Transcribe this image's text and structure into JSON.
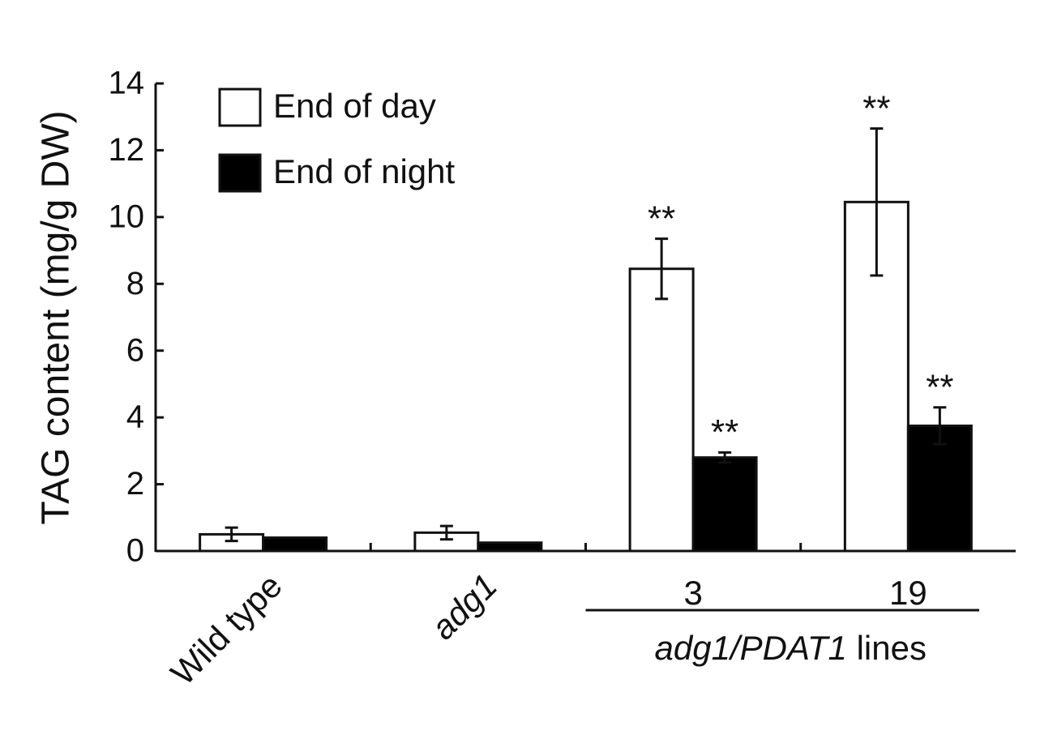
{
  "chart_data": {
    "type": "bar",
    "y_label": "TAG content (mg/g DW)",
    "categories": [
      "Wild type",
      "adg1",
      "3",
      "19"
    ],
    "italic_categories": [
      "adg1"
    ],
    "rotated_categories": [
      "Wild type",
      "adg1"
    ],
    "group_label": {
      "italic": "adg1/PDAT1",
      "text": "lines"
    },
    "series": [
      {
        "name": "End of day",
        "color": "#ffffff",
        "values": [
          0.5,
          0.55,
          8.45,
          10.45
        ],
        "errors": [
          0.2,
          0.2,
          0.9,
          2.2
        ],
        "annotations": [
          null,
          null,
          "**",
          "**"
        ]
      },
      {
        "name": "End of night",
        "color": "#000000",
        "values": [
          0.4,
          0.25,
          2.8,
          3.75
        ],
        "errors": [
          null,
          null,
          0.15,
          0.55
        ],
        "annotations": [
          null,
          null,
          "**",
          "**"
        ]
      }
    ],
    "ylim": [
      0,
      14
    ],
    "yticks": [
      0,
      2,
      4,
      6,
      8,
      10,
      12,
      14
    ],
    "grid": false,
    "legend": "top-left"
  }
}
